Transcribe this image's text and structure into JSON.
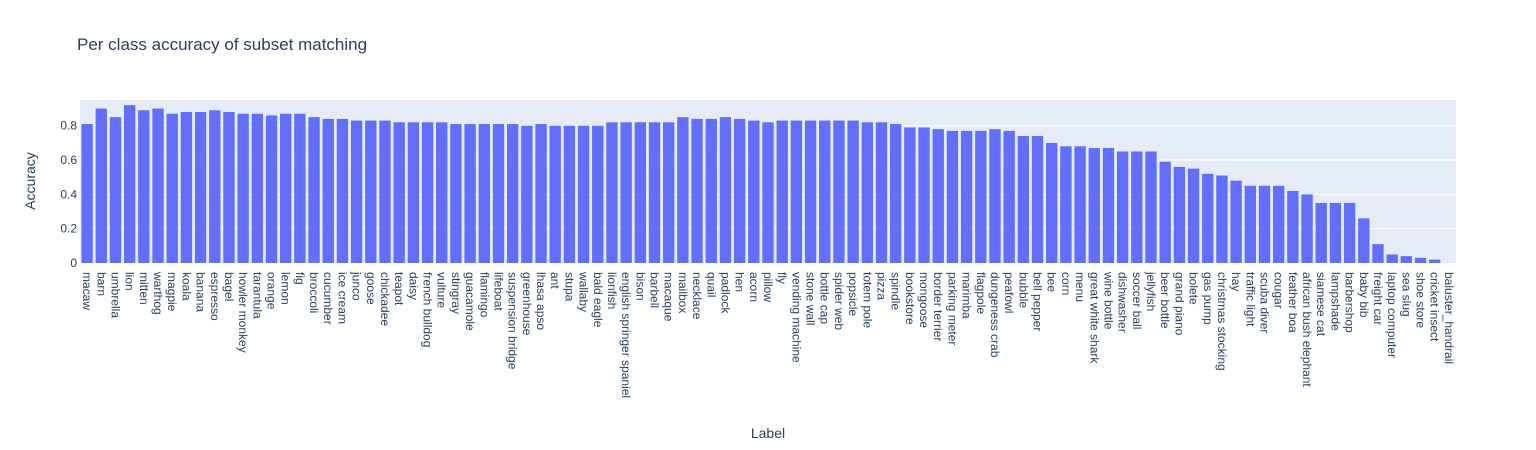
{
  "chart_data": {
    "type": "bar",
    "title": "Per class accuracy of subset matching",
    "xlabel": "Label",
    "ylabel": "Accuracy",
    "ylim": [
      0,
      0.95
    ],
    "yticks": [
      "0",
      "0.2",
      "0.4",
      "0.6",
      "0.8"
    ],
    "grid": true,
    "colors": {
      "bar": "#636efa",
      "plot_bg": "#e5ecf6",
      "grid": "#ffffff",
      "text": "#2a3f5f"
    },
    "categories": [
      "macaw",
      "barn",
      "umbrella",
      "lion",
      "mitten",
      "warthog",
      "magpie",
      "koala",
      "banana",
      "espresso",
      "bagel",
      "howler monkey",
      "tarantula",
      "orange",
      "lemon",
      "fig",
      "broccoli",
      "cucumber",
      "ice cream",
      "junco",
      "goose",
      "chickadee",
      "teapot",
      "daisy",
      "french bulldog",
      "vulture",
      "stingray",
      "guacamole",
      "flamingo",
      "lifeboat",
      "suspension bridge",
      "greenhouse",
      "lhasa apso",
      "ant",
      "stupa",
      "wallaby",
      "bald eagle",
      "lionfish",
      "english springer spaniel",
      "bison",
      "barbell",
      "macaque",
      "mailbox",
      "necklace",
      "quail",
      "padlock",
      "hen",
      "acorn",
      "pillow",
      "fly",
      "vending machine",
      "stone wall",
      "bottle cap",
      "spider web",
      "popsicle",
      "totem pole",
      "pizza",
      "spindle",
      "bookstore",
      "mongoose",
      "border terrier",
      "parking meter",
      "marimba",
      "flagpole",
      "dungeness crab",
      "peafowl",
      "bubble",
      "bell pepper",
      "bee",
      "corn",
      "menu",
      "great white shark",
      "wine bottle",
      "dishwasher",
      "soccer ball",
      "jellyfish",
      "beer bottle",
      "grand piano",
      "bolete",
      "gas pump",
      "christmas stocking",
      "hay",
      "traffic light",
      "scuba diver",
      "cougar",
      "feather boa",
      "african bush elephant",
      "siamese cat",
      "lampshade",
      "barbershop",
      "baby bib",
      "freight car",
      "laptop computer",
      "sea slug",
      "shoe store",
      "cricket insect",
      "baluster_handrail"
    ],
    "values": [
      0.81,
      0.9,
      0.85,
      0.92,
      0.89,
      0.9,
      0.87,
      0.88,
      0.88,
      0.89,
      0.88,
      0.87,
      0.87,
      0.86,
      0.87,
      0.87,
      0.85,
      0.84,
      0.84,
      0.83,
      0.83,
      0.83,
      0.82,
      0.82,
      0.82,
      0.82,
      0.81,
      0.81,
      0.81,
      0.81,
      0.81,
      0.8,
      0.81,
      0.8,
      0.8,
      0.8,
      0.8,
      0.82,
      0.82,
      0.82,
      0.82,
      0.82,
      0.85,
      0.84,
      0.84,
      0.85,
      0.84,
      0.83,
      0.82,
      0.83,
      0.83,
      0.83,
      0.83,
      0.83,
      0.83,
      0.82,
      0.82,
      0.81,
      0.79,
      0.79,
      0.78,
      0.77,
      0.77,
      0.77,
      0.78,
      0.77,
      0.74,
      0.74,
      0.7,
      0.68,
      0.68,
      0.67,
      0.67,
      0.65,
      0.65,
      0.65,
      0.59,
      0.56,
      0.55,
      0.52,
      0.51,
      0.48,
      0.45,
      0.45,
      0.45,
      0.42,
      0.4,
      0.35,
      0.35,
      0.35,
      0.26,
      0.11,
      0.05,
      0.04,
      0.03,
      0.02,
      0.0
    ]
  }
}
